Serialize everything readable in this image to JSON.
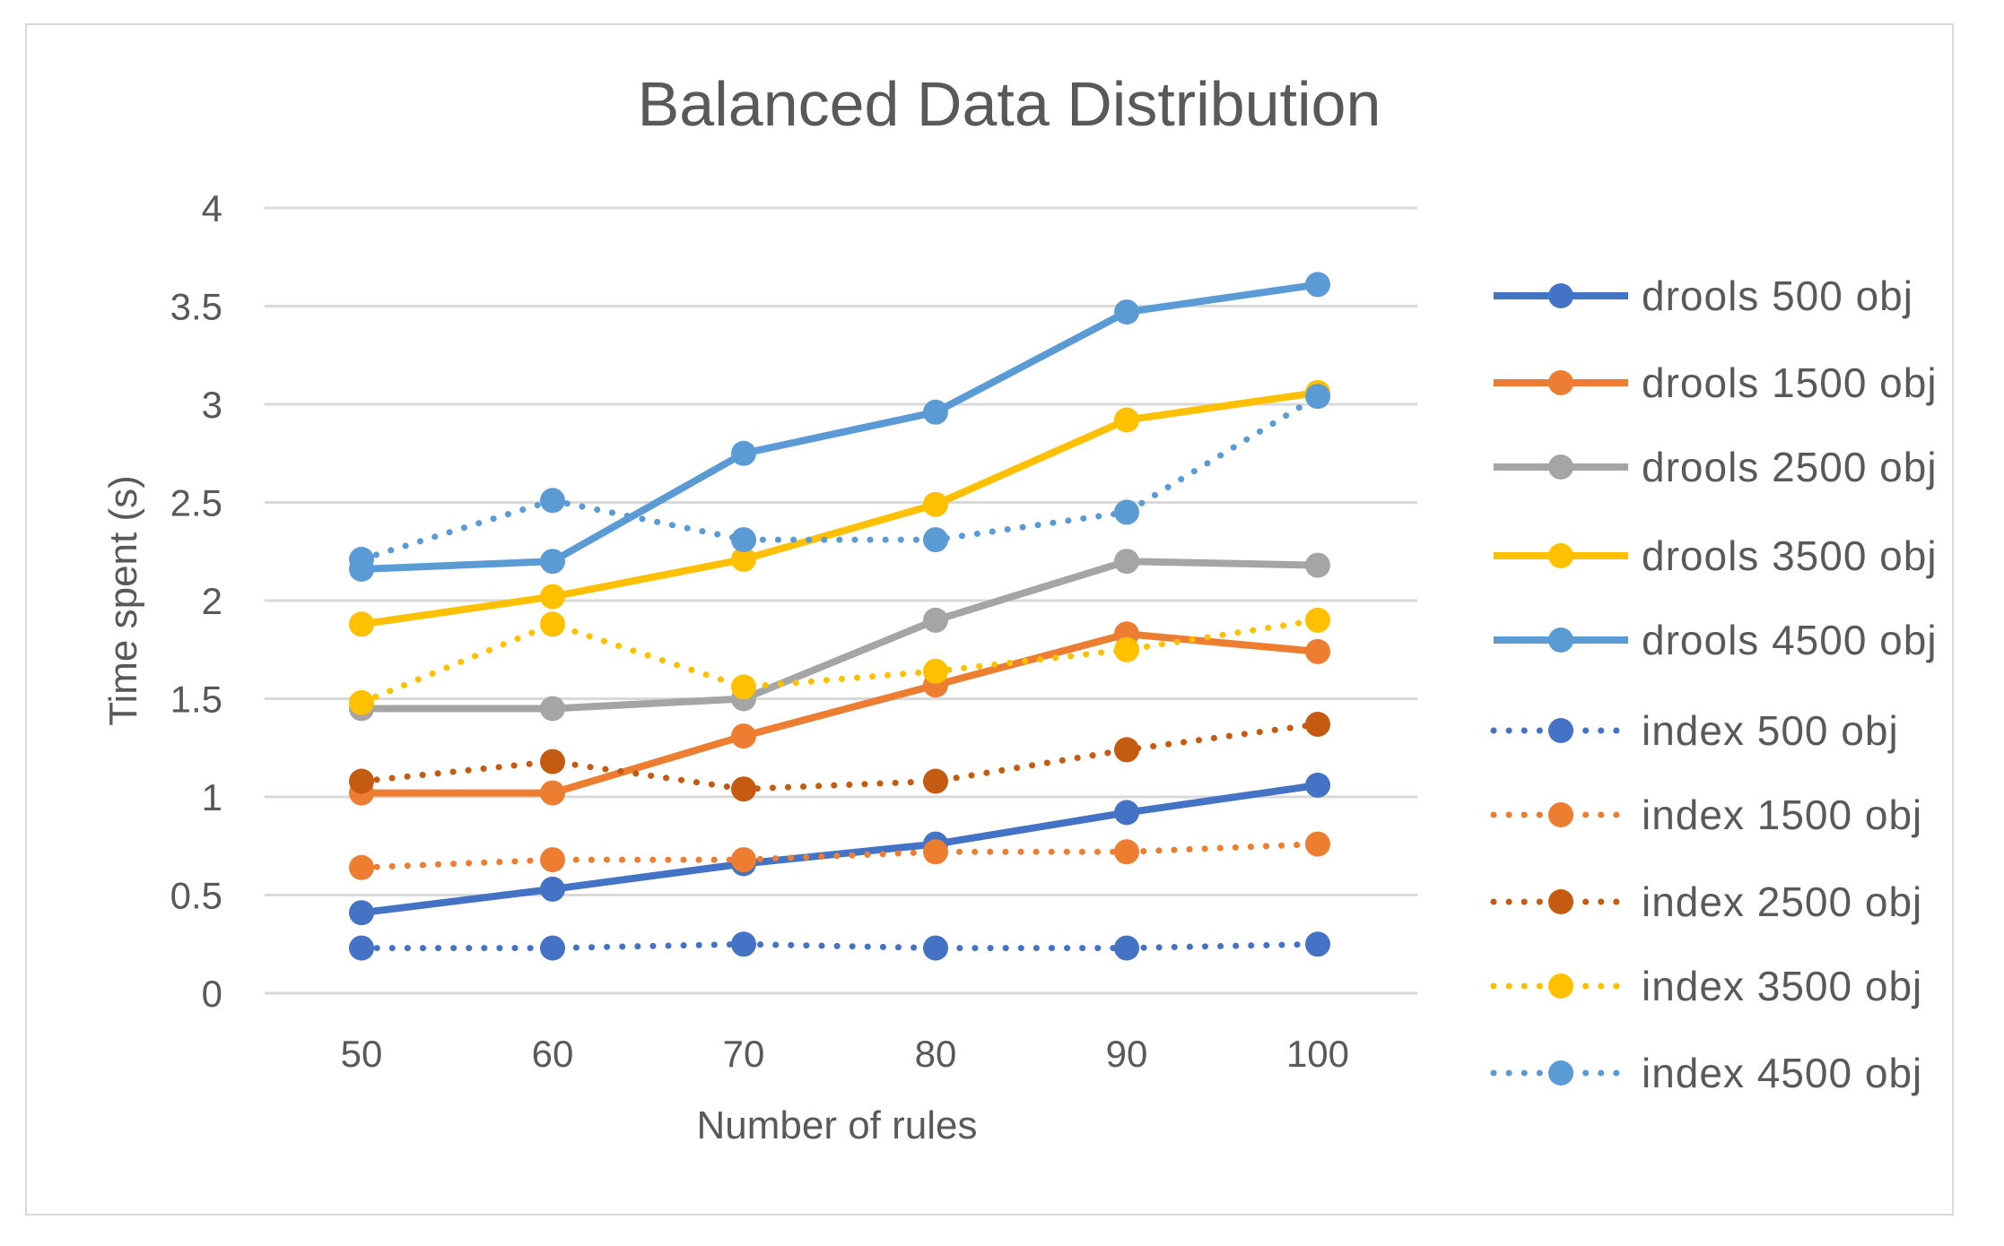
{
  "chart_data": {
    "type": "line",
    "title": "Balanced Data Distribution",
    "xlabel": "Number of rules",
    "ylabel": "Time spent (s)",
    "x": [
      50,
      60,
      70,
      80,
      90,
      100
    ],
    "x_tick_labels": [
      "50",
      "60",
      "70",
      "80",
      "90",
      "100"
    ],
    "ylim": [
      0,
      4
    ],
    "y_ticks": [
      0,
      0.5,
      1,
      1.5,
      2,
      2.5,
      3,
      3.5,
      4
    ],
    "y_tick_labels": [
      "0",
      "0.5",
      "1",
      "1.5",
      "2",
      "2.5",
      "3",
      "3.5",
      "4"
    ],
    "grid": true,
    "legend_position": "right",
    "series": [
      {
        "name": "drools  500 obj",
        "style": "solid",
        "color": "#4472C4",
        "values": [
          0.41,
          0.53,
          0.66,
          0.76,
          0.92,
          1.06
        ]
      },
      {
        "name": "drools  1500 obj",
        "style": "solid",
        "color": "#ED7D31",
        "values": [
          1.02,
          1.02,
          1.31,
          1.57,
          1.83,
          1.74
        ]
      },
      {
        "name": "drools  2500 obj",
        "style": "solid",
        "color": "#A5A5A5",
        "values": [
          1.45,
          1.45,
          1.5,
          1.9,
          2.2,
          2.18
        ]
      },
      {
        "name": "drools  3500 obj",
        "style": "solid",
        "color": "#FFC000",
        "values": [
          1.88,
          2.02,
          2.21,
          2.49,
          2.92,
          3.06
        ]
      },
      {
        "name": "drools  4500 obj",
        "style": "solid",
        "color": "#5B9BD5",
        "values": [
          2.16,
          2.2,
          2.75,
          2.96,
          3.47,
          3.61
        ]
      },
      {
        "name": "index 500 obj",
        "style": "dotted",
        "color": "#4472C4",
        "values": [
          0.23,
          0.23,
          0.25,
          0.23,
          0.23,
          0.25
        ]
      },
      {
        "name": "index 1500 obj",
        "style": "dotted",
        "color": "#ED7D31",
        "values": [
          0.64,
          0.68,
          0.68,
          0.72,
          0.72,
          0.76
        ]
      },
      {
        "name": "index 2500 obj",
        "style": "dotted",
        "color": "#C55A11",
        "values": [
          1.08,
          1.18,
          1.04,
          1.08,
          1.24,
          1.37
        ]
      },
      {
        "name": "index 3500 obj",
        "style": "dotted",
        "color": "#FFC000",
        "values": [
          1.48,
          1.88,
          1.56,
          1.64,
          1.75,
          1.9
        ]
      },
      {
        "name": "index 4500 obj",
        "style": "dotted",
        "color": "#5B9BD5",
        "values": [
          2.21,
          2.51,
          2.31,
          2.31,
          2.45,
          3.04
        ]
      }
    ]
  }
}
